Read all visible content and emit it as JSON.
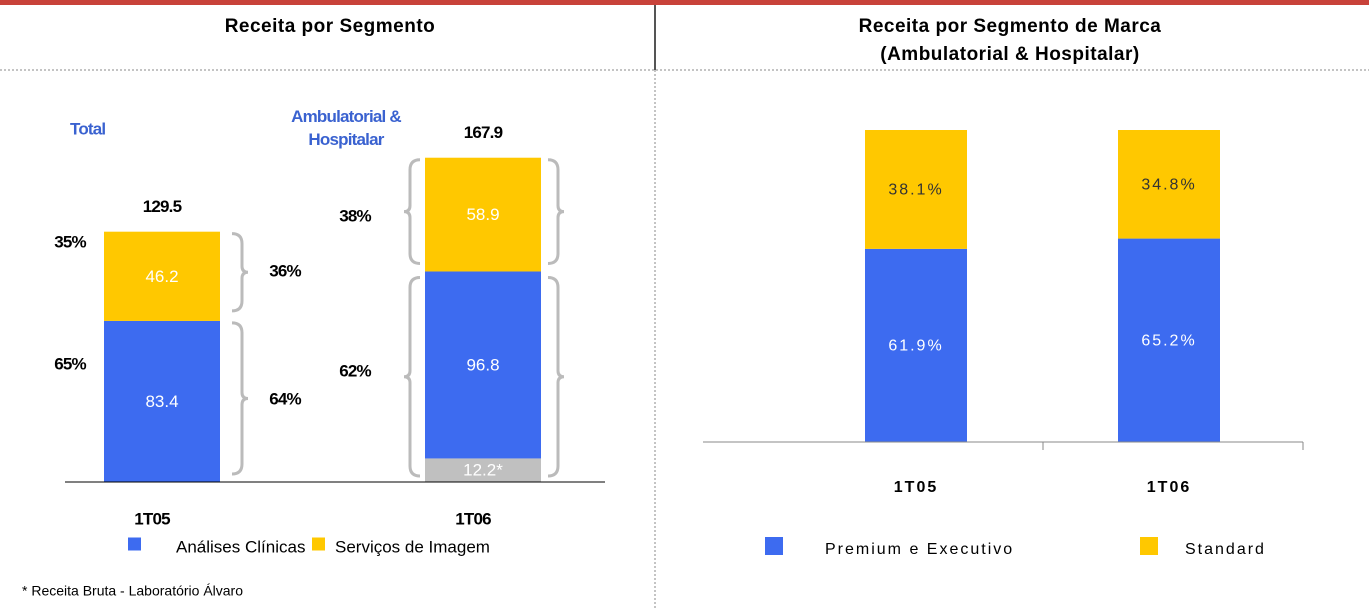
{
  "chart_data": [
    {
      "type": "stacked_bar",
      "title": "Receita por Segmento",
      "categories": [
        "1T05",
        "1T06"
      ],
      "series": [
        {
          "color": "#c0c0c0",
          "values": [
            null,
            12.2
          ],
          "value_labels": [
            null,
            "12.2*"
          ]
        },
        {
          "name": "Análises Clínicas",
          "color": "#3d6bf0",
          "values": [
            83.4,
            96.8
          ]
        },
        {
          "name": "Serviços de Imagem",
          "color": "#ffc800",
          "values": [
            46.2,
            58.9
          ]
        }
      ],
      "totals": [
        129.5,
        167.9
      ],
      "ylim": [
        0,
        175
      ],
      "group_labels": [
        "Total",
        "Ambulatorial &\nHospitalar"
      ],
      "annotations": [
        "35%",
        "65%",
        "36%",
        "64%",
        "38%",
        "62%"
      ],
      "footnote": "* Receita Bruta - Laboratório Álvaro"
    },
    {
      "type": "stacked_bar",
      "title": "Receita por Segmento de Marca\n(Ambulatorial & Hospitalar)",
      "categories": [
        "1T05",
        "1T06"
      ],
      "series": [
        {
          "name": "Premium e Executivo",
          "color": "#3d6bf0",
          "values": [
            61.9,
            65.2
          ],
          "value_labels": [
            "61.9%",
            "65.2%"
          ]
        },
        {
          "name": "Standard",
          "color": "#ffc800",
          "values": [
            38.1,
            34.8
          ],
          "value_labels": [
            "38.1%",
            "34.8%"
          ]
        }
      ],
      "ylim": [
        0,
        100
      ]
    }
  ]
}
